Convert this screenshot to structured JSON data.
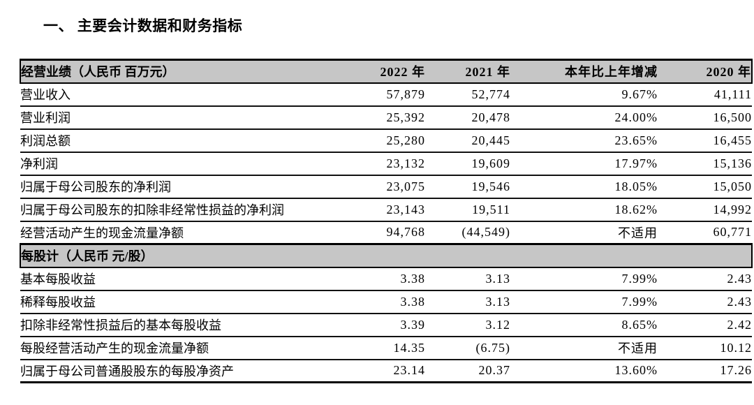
{
  "page": {
    "title": "一、 主要会计数据和财务指标"
  },
  "colors": {
    "band_bg": "#c6c6c6",
    "rule": "#000000",
    "text": "#000000"
  },
  "table": {
    "columns": [
      "2022 年",
      "2021 年",
      "本年比上年增减",
      "2020 年"
    ],
    "sections": [
      {
        "header": "经营业绩（人民币 百万元）",
        "rows": [
          {
            "label": "营业收入",
            "y2022": "57,879",
            "y2021": "52,774",
            "change": "9.67%",
            "y2020": "41,111"
          },
          {
            "label": "营业利润",
            "y2022": "25,392",
            "y2021": "20,478",
            "change": "24.00%",
            "y2020": "16,500"
          },
          {
            "label": "利润总额",
            "y2022": "25,280",
            "y2021": "20,445",
            "change": "23.65%",
            "y2020": "16,455"
          },
          {
            "label": "净利润",
            "y2022": "23,132",
            "y2021": "19,609",
            "change": "17.97%",
            "y2020": "15,136"
          },
          {
            "label": "归属于母公司股东的净利润",
            "y2022": "23,075",
            "y2021": "19,546",
            "change": "18.05%",
            "y2020": "15,050"
          },
          {
            "label": "归属于母公司股东的扣除非经常性损益的净利润",
            "y2022": "23,143",
            "y2021": "19,511",
            "change": "18.62%",
            "y2020": "14,992"
          },
          {
            "label": "经营活动产生的现金流量净额",
            "y2022": "94,768",
            "y2021": "(44,549)",
            "change": "不适用",
            "y2020": "60,771"
          }
        ]
      },
      {
        "header": "每股计（人民币 元/股）",
        "rows": [
          {
            "label": "基本每股收益",
            "y2022": "3.38",
            "y2021": "3.13",
            "change": "7.99%",
            "y2020": "2.43"
          },
          {
            "label": "稀释每股收益",
            "y2022": "3.38",
            "y2021": "3.13",
            "change": "7.99%",
            "y2020": "2.43"
          },
          {
            "label": "扣除非经常性损益后的基本每股收益",
            "y2022": "3.39",
            "y2021": "3.12",
            "change": "8.65%",
            "y2020": "2.42"
          },
          {
            "label": "每股经营活动产生的现金流量净额",
            "y2022": "14.35",
            "y2021": "(6.75)",
            "change": "不适用",
            "y2020": "10.12"
          },
          {
            "label": "归属于母公司普通股股东的每股净资产",
            "y2022": "23.14",
            "y2021": "20.37",
            "change": "13.60%",
            "y2020": "17.26"
          }
        ]
      }
    ]
  }
}
